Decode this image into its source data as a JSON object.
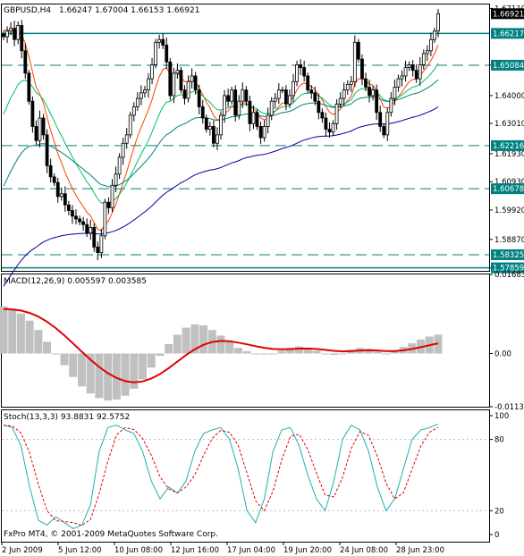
{
  "window": {
    "symbol_label": "GBPUSD,H4",
    "ohlc": "1.66247 1.67004 1.66153 1.66921",
    "copyright": "FxPro MT4, © 2001-2009 MetaQuotes Software Corp."
  },
  "colors": {
    "background": "#ffffff",
    "candle": "#000000",
    "level_line": "#008080",
    "ma_fast": "#ff4000",
    "ma_mid": "#00c060",
    "ma_trend": "#008080",
    "ma_slow": "#0000a0",
    "macd_hist": "#c0c0c0",
    "macd_signal": "#e00000",
    "stoch_main": "#20b0b0",
    "stoch_signal": "#e00000",
    "price_label_bg": "#008080"
  },
  "price_axis": {
    "ticks": [
      "1.67110",
      "1.65090",
      "1.64000",
      "1.63010",
      "1.61930",
      "1.60930",
      "1.59920",
      "1.58870",
      "1.57860"
    ],
    "current_price": "1.66921"
  },
  "levels": [
    {
      "label": "1.66217",
      "value": 1.66217,
      "style": "solid"
    },
    {
      "label": "1.65084",
      "value": 1.65084,
      "style": "dash"
    },
    {
      "label": "1.62216",
      "value": 1.62216,
      "style": "dash"
    },
    {
      "label": "1.60678",
      "value": 1.60678,
      "style": "dash"
    },
    {
      "label": "1.58325",
      "value": 1.58325,
      "style": "dash"
    },
    {
      "label": "1.57859",
      "value": 1.57859,
      "style": "solid"
    }
  ],
  "time_axis": {
    "labels": [
      "2 Jun 2009",
      "5 Jun 12:00",
      "10 Jun 08:00",
      "12 Jun 16:00",
      "17 Jun 04:00",
      "19 Jun 20:00",
      "24 Jun 08:00",
      "28 Jun 23:00"
    ]
  },
  "macd": {
    "label": "MACD(12,26,9) 0.005597 0.003585",
    "axis_ticks": [
      "0.016837",
      "0.00",
      "-0.011330"
    ]
  },
  "stoch": {
    "label": "Stoch(13,3,3) 93.8831 92.5752",
    "axis_ticks": [
      "100",
      "80",
      "20",
      "0"
    ]
  },
  "chart_data": {
    "type": "candlestick",
    "symbol": "GBPUSD",
    "timeframe": "H4",
    "price_range": [
      1.5775,
      1.6725
    ],
    "close": [
      1.661,
      1.663,
      1.664,
      1.66,
      1.665,
      1.656,
      1.648,
      1.638,
      1.629,
      1.624,
      1.632,
      1.626,
      1.615,
      1.611,
      1.609,
      1.604,
      1.605,
      1.601,
      1.599,
      1.597,
      1.596,
      1.595,
      1.594,
      1.591,
      1.593,
      1.586,
      1.584,
      1.59,
      1.602,
      1.6,
      1.608,
      1.612,
      1.618,
      1.623,
      1.626,
      1.633,
      1.636,
      1.639,
      1.641,
      1.642,
      1.646,
      1.651,
      1.659,
      1.66,
      1.658,
      1.652,
      1.64,
      1.648,
      1.649,
      1.642,
      1.639,
      1.645,
      1.647,
      1.642,
      1.636,
      1.632,
      1.628,
      1.629,
      1.623,
      1.626,
      1.633,
      1.64,
      1.638,
      1.642,
      1.633,
      1.638,
      1.642,
      1.638,
      1.63,
      1.634,
      1.629,
      1.625,
      1.629,
      1.633,
      1.638,
      1.639,
      1.642,
      1.642,
      1.637,
      1.64,
      1.645,
      1.651,
      1.65,
      1.647,
      1.642,
      1.641,
      1.638,
      1.634,
      1.632,
      1.628,
      1.627,
      1.63,
      1.637,
      1.639,
      1.642,
      1.644,
      1.645,
      1.659,
      1.653,
      1.646,
      1.643,
      1.64,
      1.642,
      1.634,
      1.629,
      1.626,
      1.634,
      1.639,
      1.643,
      1.646,
      1.647,
      1.65,
      1.651,
      1.649,
      1.646,
      1.651,
      1.655,
      1.656,
      1.66,
      1.663,
      1.6692
    ],
    "moving_averages": [
      "fast (red)",
      "mid (green)",
      "trend (teal)",
      "slow (navy)"
    ],
    "macd_values": [
      0.01,
      0.0095,
      0.0085,
      0.007,
      0.005,
      0.0025,
      0.0,
      -0.0025,
      -0.005,
      -0.007,
      -0.0085,
      -0.0095,
      -0.01,
      -0.0098,
      -0.009,
      -0.0075,
      -0.0055,
      -0.003,
      -0.0005,
      0.002,
      0.004,
      0.0055,
      0.0062,
      0.006,
      0.005,
      0.0038,
      0.0025,
      0.0012,
      0.0005,
      0.0,
      -0.0002,
      0.0,
      0.0006,
      0.0012,
      0.0015,
      0.0012,
      0.0006,
      0.0,
      -0.0003,
      0.0,
      0.0008,
      0.0012,
      0.001,
      0.0004,
      0.0,
      0.0006,
      0.0014,
      0.0022,
      0.003,
      0.0036,
      0.004
    ],
    "stoch_values": [
      92,
      90,
      75,
      40,
      12,
      8,
      15,
      10,
      5,
      8,
      25,
      70,
      90,
      92,
      88,
      85,
      70,
      45,
      30,
      40,
      35,
      45,
      70,
      85,
      88,
      90,
      80,
      55,
      20,
      10,
      30,
      70,
      88,
      90,
      75,
      50,
      30,
      20,
      45,
      80,
      92,
      88,
      70,
      40,
      20,
      30,
      55,
      80,
      88,
      90,
      93
    ]
  }
}
